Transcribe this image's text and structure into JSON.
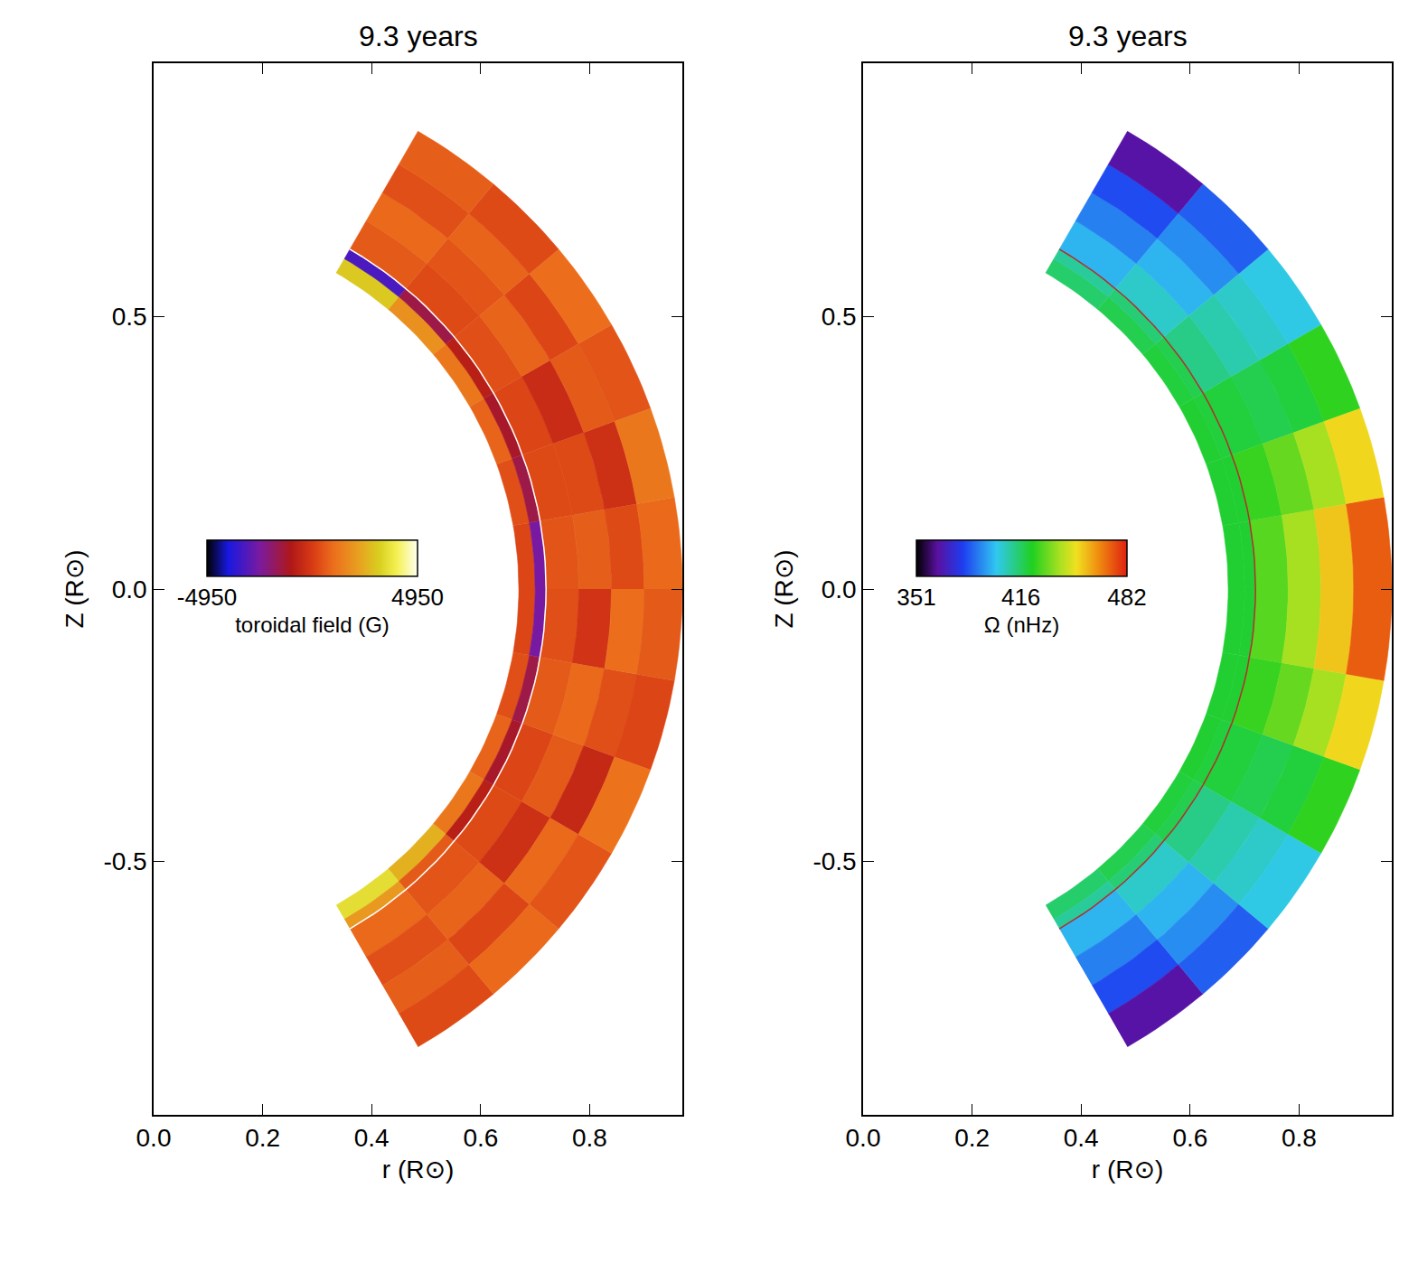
{
  "chart_data": [
    {
      "type": "heatmap",
      "title": "9.3 years",
      "x_label": "r (R⊙)",
      "y_label": "Z (R⊙)",
      "xlim": [
        0,
        0.97
      ],
      "ylim": [
        -0.965,
        0.965
      ],
      "xticks": [
        {
          "value": 0,
          "label": "0.0"
        },
        0.2,
        0.4,
        0.6,
        0.8
      ],
      "yticks": [
        -0.5,
        {
          "value": 0,
          "label": "0.0"
        },
        0.5
      ],
      "r_edges": [
        0.67,
        0.7,
        0.72,
        0.78,
        0.84,
        0.9,
        0.97
      ],
      "lat_edges": [
        -60,
        -50,
        -40,
        -30,
        -20,
        -10,
        0,
        10,
        20,
        30,
        40,
        50,
        60
      ],
      "cells": [
        [
          3500,
          2500,
          1200,
          800,
          400,
          200,
          200,
          400,
          800,
          1200,
          1800,
          3000
        ],
        [
          2000,
          600,
          -800,
          -1200,
          -1500,
          -2500,
          -2500,
          -1500,
          -1200,
          -800,
          -1500,
          -3200
        ],
        [
          900,
          500,
          300,
          200,
          600,
          400,
          500,
          300,
          200,
          400,
          300,
          600
        ],
        [
          400,
          800,
          -300,
          600,
          900,
          -200,
          700,
          300,
          -400,
          800,
          500,
          900
        ],
        [
          700,
          200,
          900,
          -500,
          400,
          1000,
          300,
          -300,
          600,
          200,
          800,
          400
        ],
        [
          300,
          900,
          500,
          1100,
          200,
          600,
          900,
          1200,
          500,
          1000,
          300,
          700
        ]
      ],
      "boundary_r": 0.72,
      "colorbar": {
        "range": [
          -4950,
          4950
        ],
        "ticks": [
          -4950,
          4950
        ],
        "label": "toroidal field (G)"
      }
    },
    {
      "type": "heatmap",
      "title": "9.3 years",
      "x_label": "r (R⊙)",
      "y_label": "Z (R⊙)",
      "xlim": [
        0,
        0.97
      ],
      "ylim": [
        -0.965,
        0.965
      ],
      "xticks": [
        {
          "value": 0,
          "label": "0.0"
        },
        0.2,
        0.4,
        0.6,
        0.8
      ],
      "yticks": [
        -0.5,
        {
          "value": 0,
          "label": "0.0"
        },
        0.5
      ],
      "r_edges": [
        0.67,
        0.7,
        0.72,
        0.78,
        0.84,
        0.9,
        0.97
      ],
      "lat_edges": [
        -60,
        -50,
        -40,
        -30,
        -20,
        -10,
        0,
        10,
        20,
        30,
        40,
        50,
        60
      ],
      "cells": [
        [
          415,
          418,
          420,
          421,
          421,
          421,
          421,
          421,
          421,
          420,
          418,
          415
        ],
        [
          410,
          414,
          418,
          420,
          421,
          421,
          421,
          421,
          420,
          418,
          414,
          410
        ],
        [
          398,
          405,
          412,
          420,
          426,
          430,
          430,
          426,
          420,
          412,
          405,
          398
        ],
        [
          390,
          398,
          408,
          418,
          432,
          440,
          440,
          432,
          418,
          408,
          398,
          390
        ],
        [
          382,
          392,
          405,
          420,
          440,
          455,
          455,
          440,
          420,
          405,
          392,
          382
        ],
        [
          365,
          385,
          402,
          425,
          452,
          472,
          472,
          452,
          425,
          402,
          385,
          365
        ]
      ],
      "boundary_r": 0.72,
      "colorbar": {
        "range": [
          351,
          482
        ],
        "ticks": [
          351,
          416,
          482
        ],
        "label": "Ω (nHz)"
      }
    }
  ]
}
